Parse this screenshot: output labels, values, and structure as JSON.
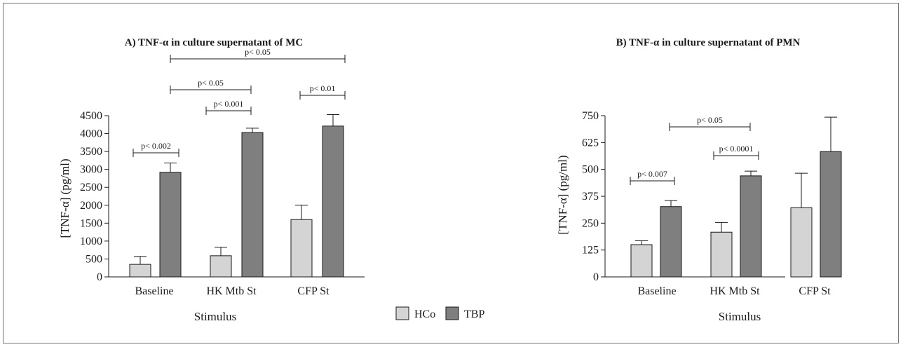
{
  "colors": {
    "hco": "#d4d4d4",
    "tbp": "#7f7f7f",
    "stroke": "#1a1a1a"
  },
  "legend": [
    {
      "name": "HCo",
      "color": "#d4d4d4"
    },
    {
      "name": "TBP",
      "color": "#7f7f7f"
    }
  ],
  "chart_data": [
    {
      "type": "bar",
      "title": "A) TNF-α in culture supernatant of MC",
      "xlabel": "Stimulus",
      "ylabel": "[TNF-α] (pg/ml)",
      "categories": [
        "Baseline",
        "HK Mtb St",
        "CFP St"
      ],
      "yticks": [
        "0",
        "500",
        "1000",
        "1500",
        "2000",
        "2500",
        "3000",
        "3500",
        "4000",
        "4500"
      ],
      "ylim": [
        0,
        4500
      ],
      "series": [
        {
          "name": "HCo",
          "values": [
            350,
            590,
            1600
          ],
          "errors": [
            220,
            240,
            400
          ]
        },
        {
          "name": "TBP",
          "values": [
            2920,
            4030,
            4210
          ],
          "errors": [
            260,
            120,
            320
          ]
        }
      ],
      "annotations": [
        {
          "label": "p< 0.002",
          "from": "Baseline HCo",
          "to": "Baseline TBP"
        },
        {
          "label": "p< 0.001",
          "from": "HK Mtb St HCo",
          "to": "HK Mtb St TBP"
        },
        {
          "label": "p< 0.05",
          "from": "Baseline TBP",
          "to": "HK Mtb St TBP"
        },
        {
          "label": "p< 0.01",
          "from": "CFP St HCo",
          "to": "CFP St TBP"
        },
        {
          "label": "p< 0.05",
          "from": "Baseline TBP",
          "to": "CFP St TBP"
        }
      ]
    },
    {
      "type": "bar",
      "title": "B) TNF-α in culture supernatant of PMN",
      "xlabel": "Stimulus",
      "ylabel": "[TNF-α] (pg/ml)",
      "categories": [
        "Baseline",
        "HK Mtb St",
        "CFP St"
      ],
      "yticks": [
        "0",
        "125",
        "250",
        "375",
        "500",
        "625",
        "750"
      ],
      "ylim": [
        0,
        750
      ],
      "series": [
        {
          "name": "HCo",
          "values": [
            150,
            208,
            322
          ],
          "errors": [
            18,
            45,
            160
          ]
        },
        {
          "name": "TBP",
          "values": [
            327,
            470,
            583
          ],
          "errors": [
            28,
            22,
            160
          ]
        }
      ],
      "annotations": [
        {
          "label": "p< 0.007",
          "from": "Baseline HCo",
          "to": "Baseline TBP"
        },
        {
          "label": "p< 0.0001",
          "from": "HK Mtb St HCo",
          "to": "HK Mtb St TBP"
        },
        {
          "label": "p< 0.05",
          "from": "Baseline TBP",
          "to": "HK Mtb St TBP"
        }
      ]
    }
  ]
}
